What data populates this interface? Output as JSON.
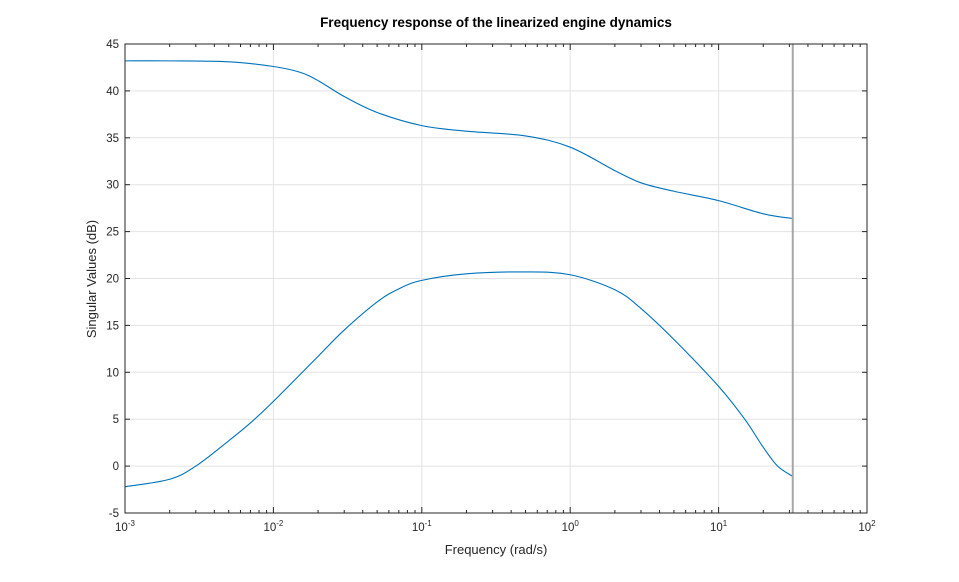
{
  "chart_data": {
    "type": "line",
    "title": "Frequency response of the linearized engine dynamics",
    "xlabel": "Frequency (rad/s)",
    "ylabel": "Singular Values (dB)",
    "xscale": "log",
    "xlim": [
      0.001,
      100
    ],
    "ylim": [
      -5,
      45
    ],
    "xticks": [
      {
        "value": 0.001,
        "base": "10",
        "exp": "-3"
      },
      {
        "value": 0.01,
        "base": "10",
        "exp": "-2"
      },
      {
        "value": 0.1,
        "base": "10",
        "exp": "-1"
      },
      {
        "value": 1,
        "base": "10",
        "exp": "0"
      },
      {
        "value": 10,
        "base": "10",
        "exp": "1"
      },
      {
        "value": 100,
        "base": "10",
        "exp": "2"
      }
    ],
    "yticks": [
      "-5",
      "0",
      "5",
      "10",
      "15",
      "20",
      "25",
      "30",
      "35",
      "40",
      "45"
    ],
    "grid": true,
    "line_color": "#0072BD",
    "vertical_marker": {
      "x": 31.6,
      "color": "#A6A6A6"
    },
    "series": [
      {
        "x": [
          0.001,
          0.002,
          0.005,
          0.01,
          0.015,
          0.02,
          0.03,
          0.05,
          0.1,
          0.2,
          0.5,
          1,
          2,
          3,
          5,
          10,
          20,
          31.6
        ],
        "values": [
          43.2,
          43.2,
          43.1,
          42.6,
          42.0,
          41.1,
          39.4,
          37.7,
          36.3,
          35.7,
          35.2,
          34.0,
          31.5,
          30.2,
          29.3,
          28.3,
          26.9,
          26.4
        ]
      },
      {
        "x": [
          0.001,
          0.002,
          0.003,
          0.005,
          0.007,
          0.01,
          0.02,
          0.03,
          0.05,
          0.07,
          0.1,
          0.2,
          0.5,
          1,
          2,
          3,
          5,
          10,
          15,
          20,
          25,
          31.6
        ],
        "values": [
          -2.2,
          -1.4,
          0.0,
          2.7,
          4.6,
          6.9,
          11.7,
          14.5,
          17.5,
          18.9,
          19.8,
          20.5,
          20.7,
          20.4,
          18.8,
          16.8,
          13.5,
          8.5,
          5.0,
          2.0,
          0.0,
          -1.1
        ]
      }
    ]
  }
}
